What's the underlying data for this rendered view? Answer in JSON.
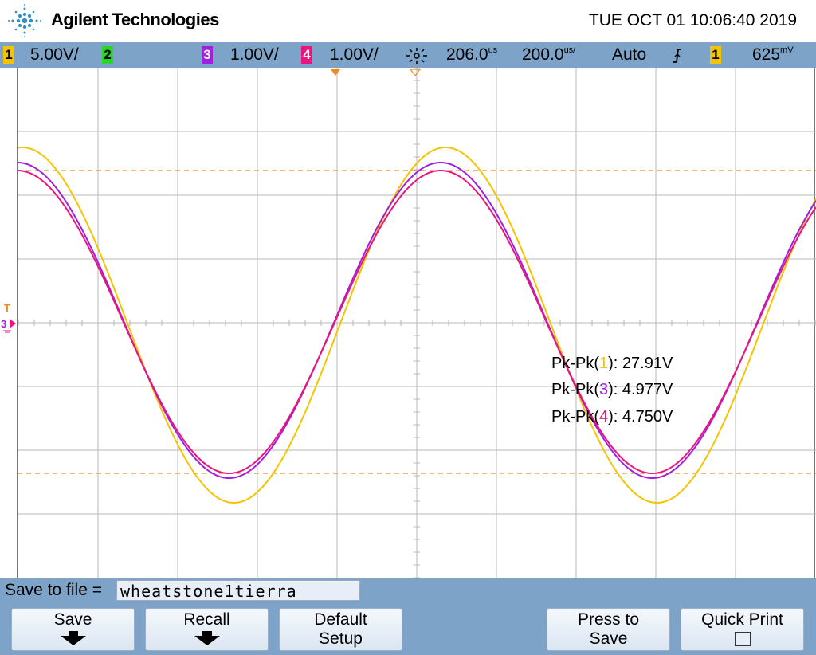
{
  "header": {
    "brand": "Agilent Technologies",
    "datetime": "TUE OCT 01 10:06:40 2019"
  },
  "statusbar": {
    "ch1_num": "1",
    "ch1_scale": "5.00V/",
    "ch2_num": "2",
    "ch3_num": "3",
    "ch3_scale": "1.00V/",
    "ch4_num": "4",
    "ch4_scale": "1.00V/",
    "time_delay": "206.0",
    "time_delay_unit": "us",
    "time_scale": "200.0",
    "time_scale_unit": "us/",
    "trigger_mode": "Auto",
    "trigger_source": "1",
    "trigger_level": "625",
    "trigger_level_unit": "mV"
  },
  "colors": {
    "ch1": "#f5c400",
    "ch2": "#2bd62b",
    "ch3": "#a020e0",
    "ch4": "#e8167d",
    "cursor": "#f08a1e",
    "grid": "#b9b9b9"
  },
  "measurements": [
    {
      "label_prefix": "Pk-Pk(",
      "channel": "1",
      "label_suffix": "): 27.91V"
    },
    {
      "label_prefix": "Pk-Pk(",
      "channel": "3",
      "label_suffix": "): 4.977V"
    },
    {
      "label_prefix": "Pk-Pk(",
      "channel": "4",
      "label_suffix": "): 4.750V"
    }
  ],
  "marker_labels": {
    "trigger": "T",
    "ground": "3"
  },
  "savebar": {
    "label": "Save to file =",
    "filename": "wheatstone1tierra",
    "buttons": {
      "save": "Save",
      "recall": "Recall",
      "default_l1": "Default",
      "default_l2": "Setup",
      "press_l1": "Press to",
      "press_l2": "Save",
      "quick_print": "Quick Print"
    }
  }
}
